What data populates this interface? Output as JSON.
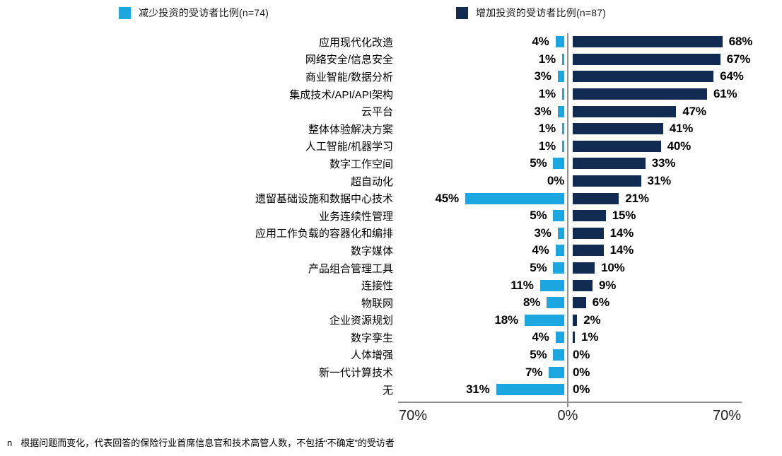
{
  "legend": {
    "decrease_label": "减少投资的受访者比例(n=74)",
    "increase_label": "增加投资的受访者比例(n=87)"
  },
  "chart_data": {
    "type": "bar",
    "orientation": "horizontal-diverging",
    "categories": [
      "应用现代化改造",
      "网络安全/信息安全",
      "商业智能/数据分析",
      "集成技术/API/API架构",
      "云平台",
      "整体体验解决方案",
      "人工智能/机器学习",
      "数字工作空间",
      "超自动化",
      "遗留基础设施和数据中心技术",
      "业务连续性管理",
      "应用工作负载的容器化和编排",
      "数字媒体",
      "产品组合管理工具",
      "连接性",
      "物联网",
      "企业资源规划",
      "数字孪生",
      "人体增强",
      "新一代计算技术",
      "无"
    ],
    "series": [
      {
        "name": "减少投资的受访者比例(n=74)",
        "color": "#1CA7E1",
        "direction": "left",
        "values": [
          4,
          1,
          3,
          1,
          3,
          1,
          1,
          5,
          0,
          45,
          5,
          3,
          4,
          5,
          11,
          8,
          18,
          4,
          5,
          7,
          31
        ]
      },
      {
        "name": "增加投资的受访者比例(n=87)",
        "color": "#112B52",
        "direction": "right",
        "values": [
          68,
          67,
          64,
          61,
          47,
          41,
          40,
          33,
          31,
          21,
          15,
          14,
          14,
          10,
          9,
          6,
          2,
          1,
          0,
          0,
          0
        ]
      }
    ],
    "axis": {
      "left_label": "70%",
      "center_label": "0%",
      "right_label": "70%",
      "max": 70,
      "line_color": "#8E8E8E"
    },
    "value_suffix": "%",
    "legend_position": "top",
    "grid": false
  },
  "footnote": {
    "prefix": "n",
    "text": "根据问题而变化，代表回答的保险行业首席信息官和技术高管人数，不包括“不确定”的受访者"
  }
}
